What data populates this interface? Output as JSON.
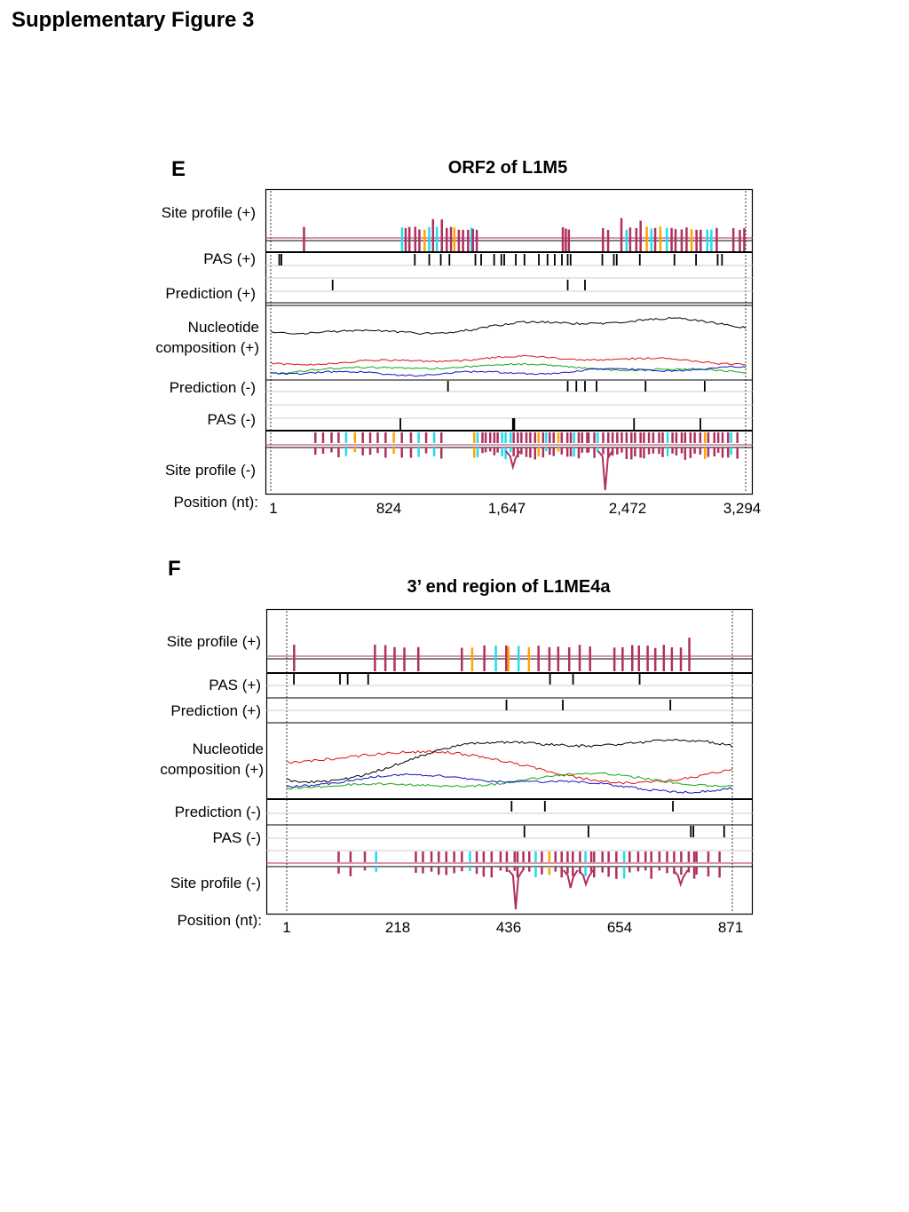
{
  "page": {
    "title": "Supplementary Figure 3"
  },
  "colors": {
    "site": "#b03060",
    "cyan": "#22ddee",
    "orange": "#ffa500",
    "pas": "#000000",
    "comp_a": "#000000",
    "comp_b": "#dd1111",
    "comp_c": "#11aa11",
    "comp_d": "#1111cc"
  },
  "panels": [
    {
      "letter": "E",
      "title": "ORF2 of L1M5",
      "labels": {
        "site_plus": "Site profile (+)",
        "pas_plus": "PAS (+)",
        "pred_plus": "Prediction (+)",
        "comp_1": "Nucleotide",
        "comp_2": "composition (+)",
        "pred_minus": "Prediction (-)",
        "pas_minus": "PAS (-)",
        "site_minus": "Site profile (-)",
        "position": "Position (nt):"
      },
      "ticks": [
        "1",
        "824",
        "1,647",
        "2,472",
        "3,294"
      ],
      "chart_data": {
        "type": "line",
        "x_range": [
          1,
          3294
        ],
        "pas_plus_positions": [
          60,
          75,
          1000,
          1100,
          1180,
          1240,
          1420,
          1460,
          1550,
          1600,
          1620,
          1700,
          1760,
          1860,
          1920,
          1970,
          2020,
          2060,
          2080,
          2300,
          2380,
          2400,
          2560,
          2800,
          2950,
          3100,
          3130
        ],
        "prediction_plus_positions": [
          430,
          2060,
          2180
        ],
        "prediction_minus_positions": [
          1230,
          2060,
          2120,
          2180,
          2260,
          2600,
          3010
        ],
        "pas_minus_positions": [
          900,
          1680,
          1690,
          2520,
          2980
        ]
      }
    },
    {
      "letter": "F",
      "title": "3’ end region of L1ME4a",
      "labels": {
        "site_plus": "Site profile (+)",
        "pas_plus": "PAS (+)",
        "pred_plus": "Prediction (+)",
        "comp_1": "Nucleotide",
        "comp_2": "composition (+)",
        "pred_minus": "Prediction (-)",
        "pas_minus": "PAS (-)",
        "site_minus": "Site profile (-)",
        "position": "Position (nt):"
      },
      "ticks": [
        "1",
        "218",
        "436",
        "654",
        "871"
      ],
      "chart_data": {
        "type": "line",
        "x_range": [
          1,
          871
        ],
        "pas_plus_positions": [
          15,
          105,
          120,
          160,
          515,
          560,
          690
        ],
        "prediction_plus_positions": [
          430,
          540,
          750
        ],
        "prediction_minus_positions": [
          440,
          505,
          755
        ],
        "pas_minus_positions": [
          465,
          590,
          790,
          795,
          855
        ]
      }
    }
  ]
}
